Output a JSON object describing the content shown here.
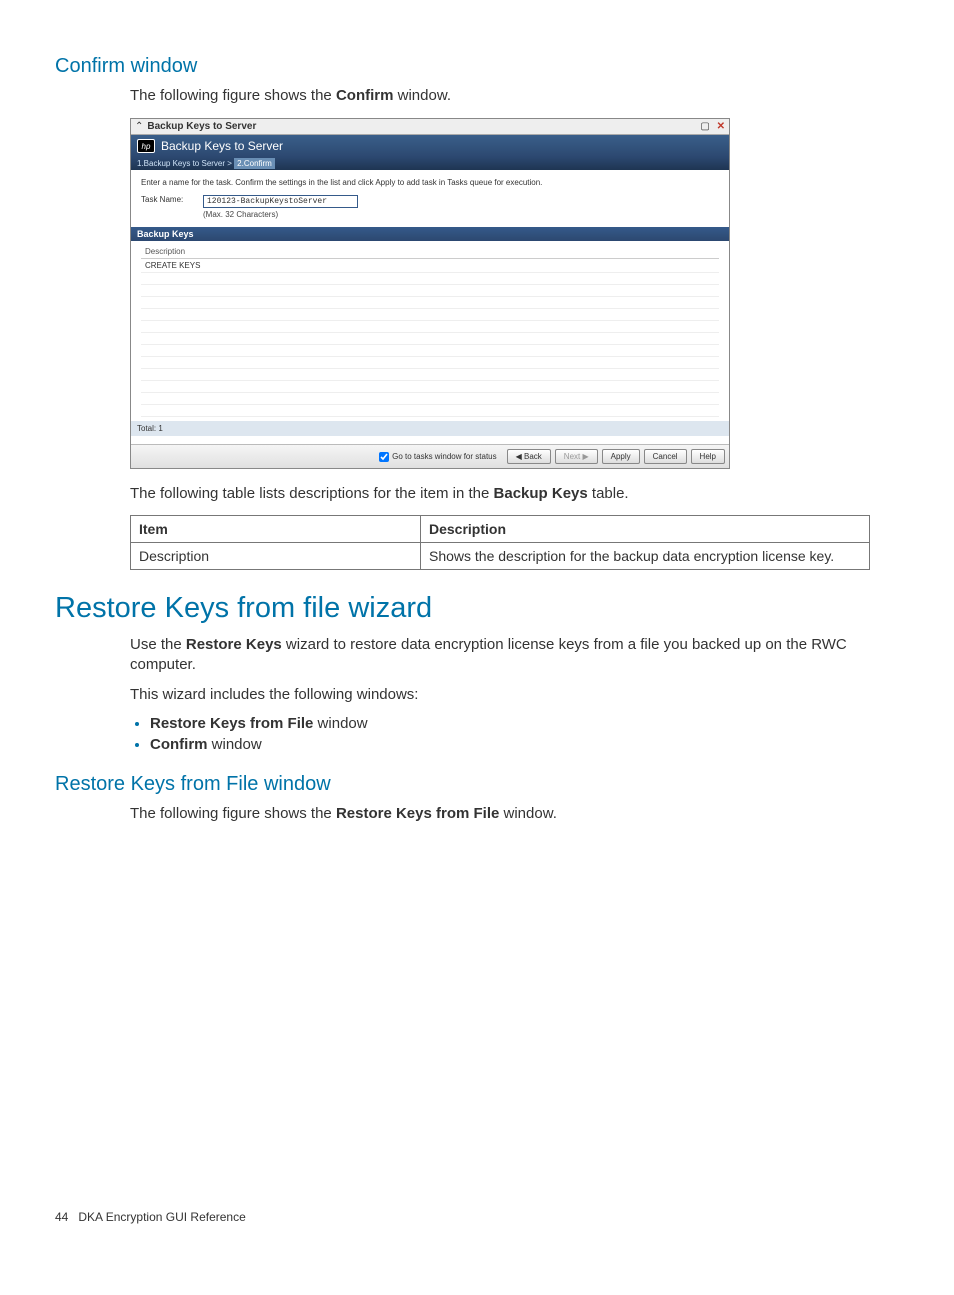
{
  "colors": {
    "heading": "#0073a8",
    "dialog_header_grad_top": "#3a5f8a",
    "dialog_header_grad_bot": "#2c4870",
    "section_grad_top": "#355a8a",
    "total_bg": "#dde6ef"
  },
  "section1": {
    "title": "Confirm window",
    "intro_pre": "The following figure shows the ",
    "intro_bold": "Confirm",
    "intro_post": " window."
  },
  "dialog": {
    "window_title": "Backup Keys to Server",
    "header_title": "Backup Keys to Server",
    "breadcrumb_step1": "1.Backup Keys to Server  >",
    "breadcrumb_step2": "2.Confirm",
    "instruction": "Enter a name for the task. Confirm the settings in the list and click Apply to add task in Tasks queue for execution.",
    "task_name_label": "Task Name:",
    "task_name_value": "120123-BackupKeystoServer",
    "task_name_hint": "(Max. 32 Characters)",
    "section_title": "Backup Keys",
    "col_header": "Description",
    "row1": "CREATE KEYS",
    "total_label": "Total: 1",
    "checkbox_label": "Go to tasks window for status",
    "buttons": {
      "back": "◀ Back",
      "next": "Next ▶",
      "apply": "Apply",
      "cancel": "Cancel",
      "help": "Help"
    }
  },
  "table_intro": {
    "pre": "The following table lists descriptions for the item in the ",
    "bold": "Backup Keys",
    "post": " table."
  },
  "desc_table": {
    "h1": "Item",
    "h2": "Description",
    "r1c1": "Description",
    "r1c2": "Shows the description for the backup data encryption license key."
  },
  "section2": {
    "title": "Restore Keys from file wizard",
    "p1_pre": "Use the ",
    "p1_bold": "Restore Keys",
    "p1_post": " wizard to restore data encryption license keys from a file you backed up on the RWC computer.",
    "p2": "This wizard includes the following windows:",
    "li1_bold": "Restore Keys from File",
    "li1_post": " window",
    "li2_bold": "Confirm",
    "li2_post": " window"
  },
  "section3": {
    "title": "Restore Keys from File window",
    "intro_pre": "The following figure shows the ",
    "intro_bold": "Restore Keys from File",
    "intro_post": " window."
  },
  "footer": {
    "page": "44",
    "label": "DKA Encryption GUI Reference"
  }
}
